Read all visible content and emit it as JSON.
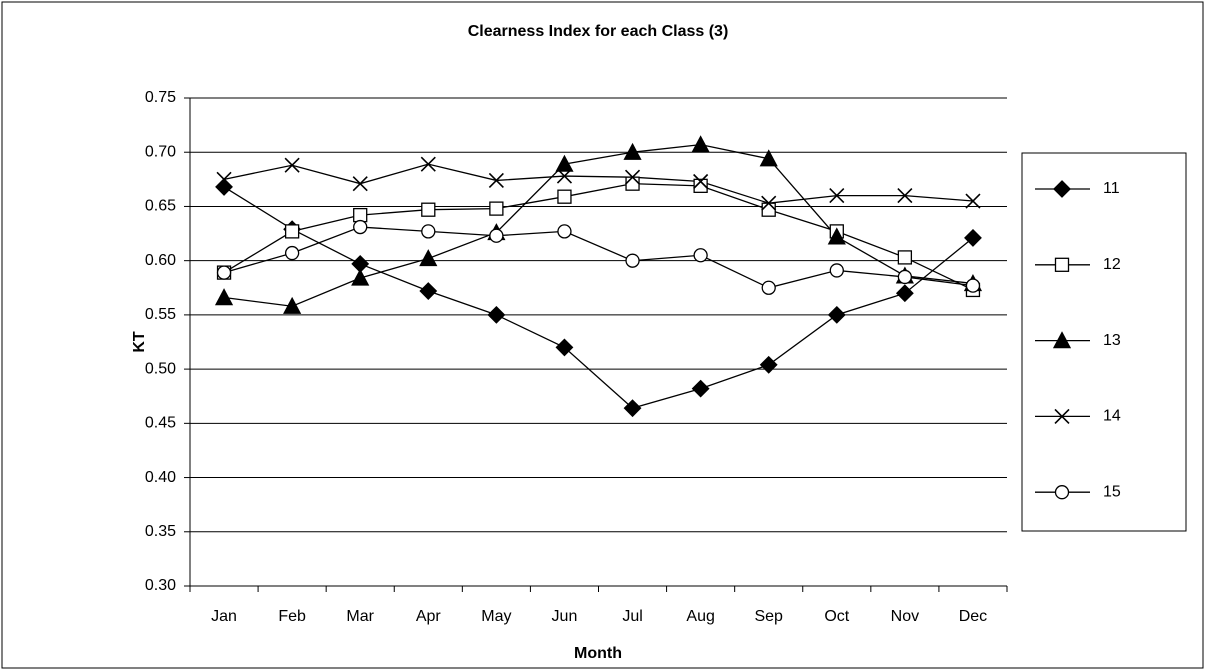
{
  "chart_data": {
    "type": "line",
    "title": "Clearness Index for each Class (3)",
    "x_label": "Month",
    "y_label": "KT",
    "categories": [
      "Jan",
      "Feb",
      "Mar",
      "Apr",
      "May",
      "Jun",
      "Jul",
      "Aug",
      "Sep",
      "Oct",
      "Nov",
      "Dec"
    ],
    "ylim": [
      0.3,
      0.75
    ],
    "yticks": [
      {
        "value": 0.3,
        "label": "0.30"
      },
      {
        "value": 0.35,
        "label": "0.35"
      },
      {
        "value": 0.4,
        "label": "0.40"
      },
      {
        "value": 0.45,
        "label": "0.45"
      },
      {
        "value": 0.5,
        "label": "0.50"
      },
      {
        "value": 0.55,
        "label": "0.55"
      },
      {
        "value": 0.6,
        "label": "0.60"
      },
      {
        "value": 0.65,
        "label": "0.65"
      },
      {
        "value": 0.7,
        "label": "0.70"
      },
      {
        "value": 0.75,
        "label": "0.75"
      }
    ],
    "grid": true,
    "legend": "right",
    "series": [
      {
        "name": "11",
        "color": "#000000",
        "marker": "diamond",
        "values": [
          0.668,
          0.629,
          0.597,
          0.572,
          0.55,
          0.52,
          0.464,
          0.482,
          0.504,
          0.55,
          0.57,
          0.621
        ]
      },
      {
        "name": "12",
        "color": "#000000",
        "marker": "square",
        "values": [
          0.589,
          0.627,
          0.642,
          0.647,
          0.648,
          0.659,
          0.671,
          0.669,
          0.647,
          0.627,
          0.603,
          0.573
        ]
      },
      {
        "name": "13",
        "color": "#000000",
        "marker": "triangle",
        "values": [
          0.566,
          0.558,
          0.584,
          0.602,
          0.626,
          0.689,
          0.7,
          0.707,
          0.694,
          0.622,
          0.586,
          0.579
        ]
      },
      {
        "name": "14",
        "color": "#000000",
        "marker": "x",
        "values": [
          0.675,
          0.688,
          0.671,
          0.689,
          0.674,
          0.678,
          0.677,
          0.673,
          0.653,
          0.66,
          0.66,
          0.655
        ]
      },
      {
        "name": "15",
        "color": "#000000",
        "marker": "circle",
        "values": [
          0.589,
          0.607,
          0.631,
          0.627,
          0.623,
          0.627,
          0.6,
          0.605,
          0.575,
          0.591,
          0.585,
          0.577
        ]
      }
    ]
  }
}
